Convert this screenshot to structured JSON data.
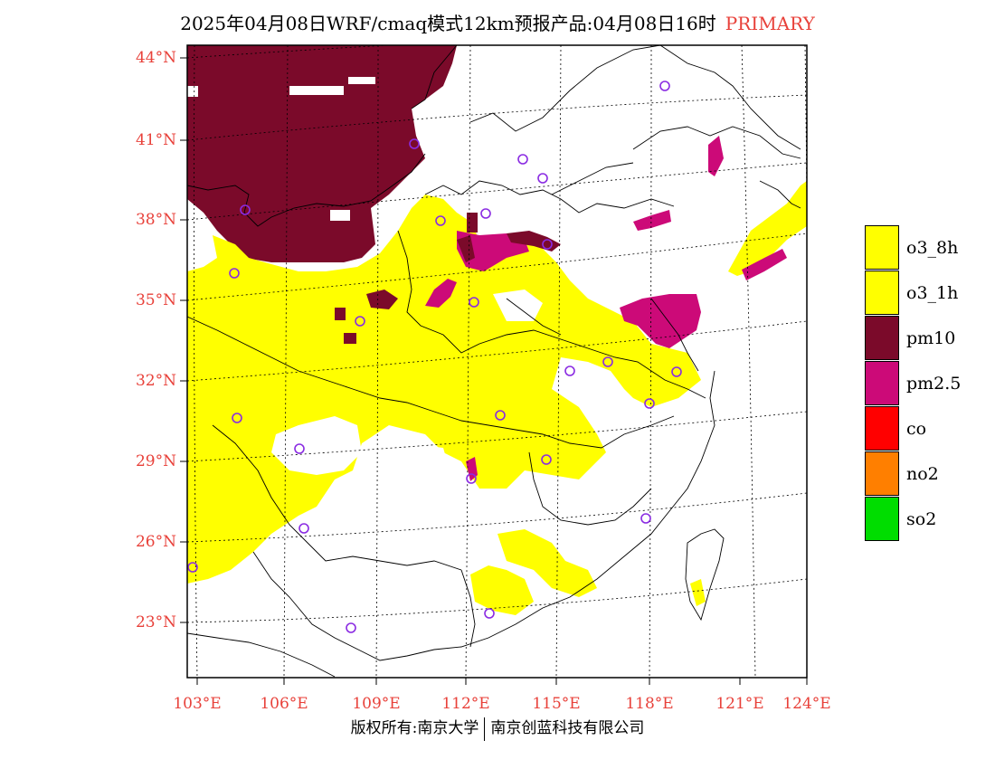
{
  "title": {
    "main": "2025年04月08日WRF/cmaq模式12km预报产品:04月08日16时",
    "tag": "PRIMARY"
  },
  "map": {
    "lat_labels": [
      "44°N",
      "41°N",
      "38°N",
      "35°N",
      "32°N",
      "29°N",
      "26°N",
      "23°N"
    ],
    "lon_labels": [
      "103°E",
      "106°E",
      "109°E",
      "112°E",
      "115°E",
      "118°E",
      "121°E",
      "124°E"
    ],
    "station_marker": "city-circle-icon"
  },
  "legend": {
    "items": [
      {
        "label": "o3_8h",
        "color": "#ffff00"
      },
      {
        "label": "o3_1h",
        "color": "#ffff00"
      },
      {
        "label": "pm10",
        "color": "#7b0a2a"
      },
      {
        "label": "pm2.5",
        "color": "#cc0a78"
      },
      {
        "label": "co",
        "color": "#ff0000"
      },
      {
        "label": "no2",
        "color": "#ff7f00"
      },
      {
        "label": "so2",
        "color": "#00dd00"
      }
    ]
  },
  "colors": {
    "pm10": "#7b0a2a",
    "pm25": "#cc0a78",
    "o3": "#ffff00",
    "station": "#8a2be2",
    "label": "#e8413a"
  },
  "footer": {
    "left": "版权所有:南京大学",
    "right": "南京创蓝科技有限公司"
  }
}
